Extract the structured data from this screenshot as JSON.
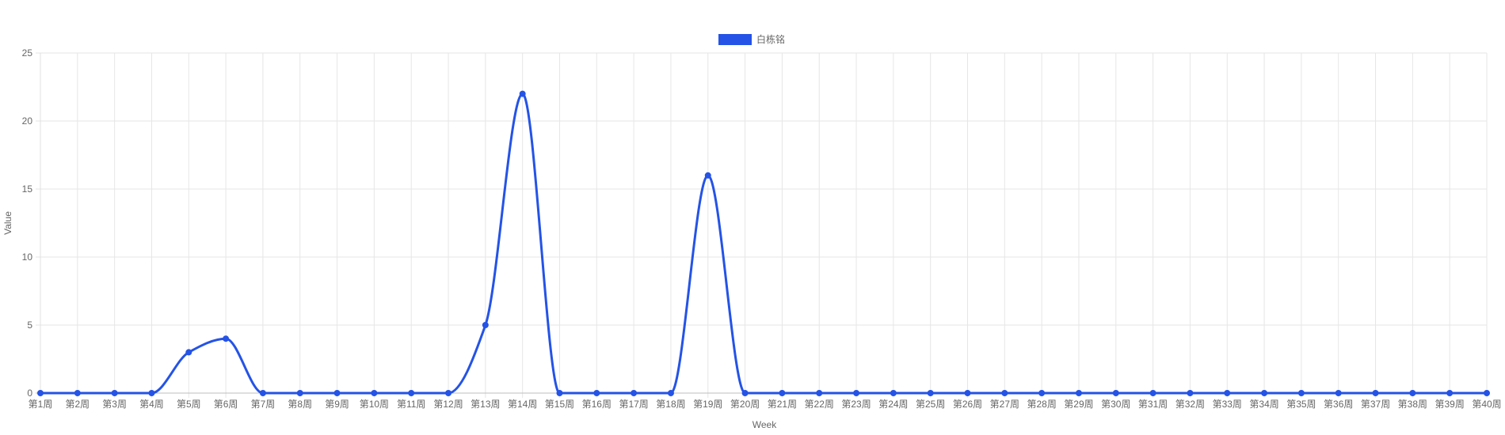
{
  "chart_data": {
    "type": "line",
    "x": [
      "第1周",
      "第2周",
      "第3周",
      "第4周",
      "第5周",
      "第6周",
      "第7周",
      "第8周",
      "第9周",
      "第10周",
      "第11周",
      "第12周",
      "第13周",
      "第14周",
      "第15周",
      "第16周",
      "第17周",
      "第18周",
      "第19周",
      "第20周",
      "第21周",
      "第22周",
      "第23周",
      "第24周",
      "第25周",
      "第26周",
      "第27周",
      "第28周",
      "第29周",
      "第30周",
      "第31周",
      "第32周",
      "第33周",
      "第34周",
      "第35周",
      "第36周",
      "第37周",
      "第38周",
      "第39周",
      "第40周"
    ],
    "series": [
      {
        "name": "白栋铭",
        "color": "#2453e6",
        "values": [
          0,
          0,
          0,
          0,
          3,
          4,
          0,
          0,
          0,
          0,
          0,
          0,
          5,
          22,
          0,
          0,
          0,
          0,
          16,
          0,
          0,
          0,
          0,
          0,
          0,
          0,
          0,
          0,
          0,
          0,
          0,
          0,
          0,
          0,
          0,
          0,
          0,
          0,
          0,
          0
        ]
      }
    ],
    "xlabel": "Week",
    "ylabel": "Value",
    "ylim": [
      0,
      25
    ],
    "yticks": [
      "0",
      "5",
      "10",
      "15",
      "20",
      "25"
    ],
    "grid": true,
    "legend": "top-center"
  }
}
